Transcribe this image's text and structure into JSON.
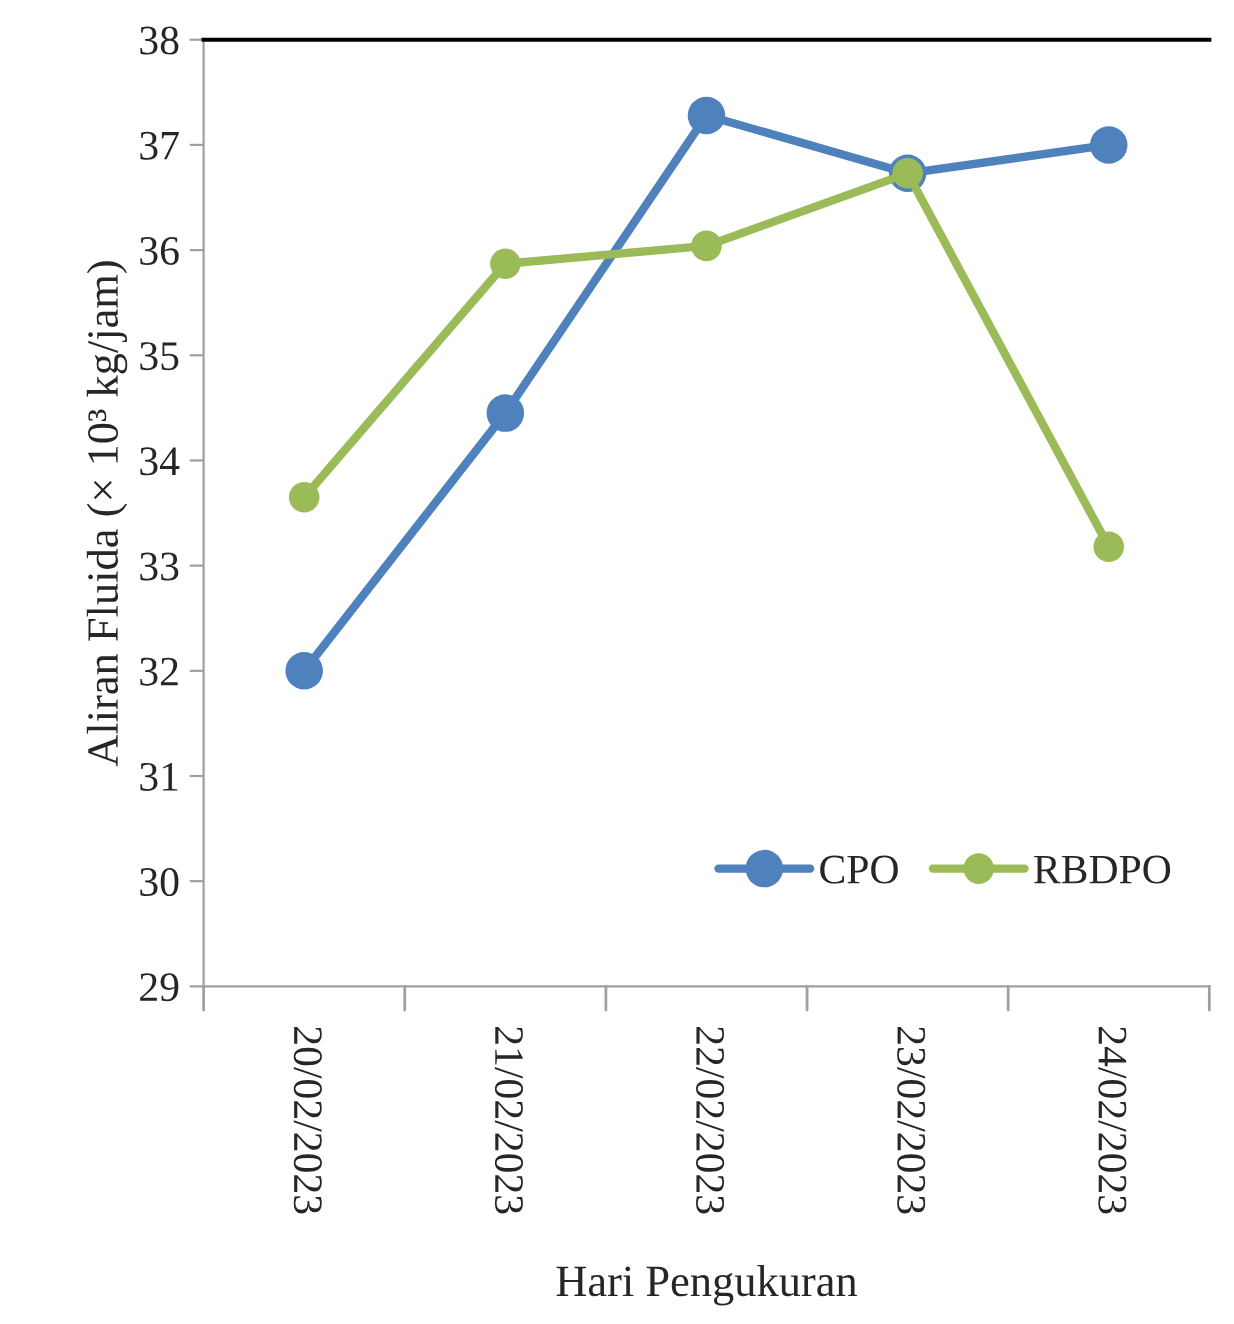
{
  "chart_data": {
    "type": "line",
    "xlabel": "Hari Pengukuran",
    "ylabel": "Aliran Fluida (× 10³ kg/jam)",
    "categories": [
      "20/02/2023",
      "21/02/2023",
      "22/02/2023",
      "23/02/2023",
      "24/02/2023"
    ],
    "series": [
      {
        "name": "CPO",
        "color": "#4f81bd",
        "values": [
          32.0,
          34.45,
          37.28,
          36.73,
          37.0
        ]
      },
      {
        "name": "RBDPO",
        "color": "#9bbb59",
        "values": [
          33.65,
          35.87,
          36.04,
          36.73,
          33.18
        ]
      }
    ],
    "ylim": [
      29,
      38
    ],
    "yticks": [
      29,
      30,
      31,
      32,
      33,
      34,
      35,
      36,
      37,
      38
    ],
    "grid": false,
    "legend": "bottom right",
    "marker": "circle",
    "line_style": "solid"
  }
}
